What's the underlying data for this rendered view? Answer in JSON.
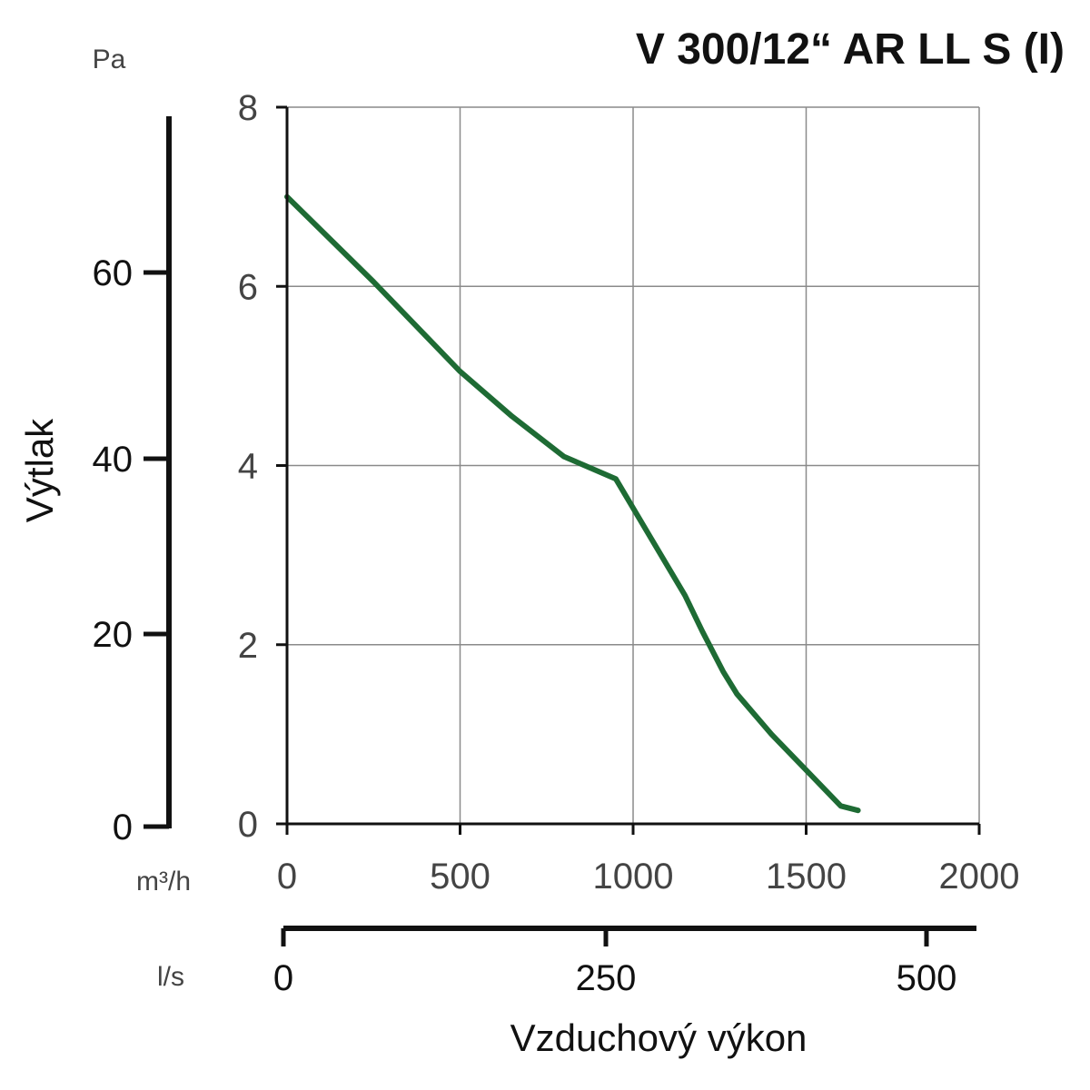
{
  "chart_data": {
    "type": "line",
    "title": "V 300/12“ AR LL S (I)",
    "ylabel": "Výtlak",
    "xlabel": "Vzduchový výkon",
    "y_unit": "Pa",
    "x_unit": "m³/h",
    "x2_unit": "l/s",
    "xlim": [
      0,
      2000
    ],
    "ylim": [
      0,
      8
    ],
    "y_ticks": [
      "0",
      "2",
      "4",
      "6",
      "8"
    ],
    "x_ticks": [
      "0",
      "500",
      "1000",
      "1500",
      "2000"
    ],
    "y2_ticks": [
      "0",
      "20",
      "40",
      "60"
    ],
    "x2_ticks": [
      "0",
      "250",
      "500"
    ],
    "grid": true,
    "line_color": "#1e6b34",
    "series": [
      {
        "x": [
          0,
          250,
          500,
          650,
          800,
          950,
          1050,
          1150,
          1200,
          1260,
          1300,
          1400,
          1500,
          1600,
          1650
        ],
        "y": [
          7.0,
          6.05,
          5.05,
          4.55,
          4.1,
          3.85,
          3.2,
          2.55,
          2.15,
          1.7,
          1.45,
          1.0,
          0.6,
          0.2,
          0.15
        ]
      }
    ]
  }
}
